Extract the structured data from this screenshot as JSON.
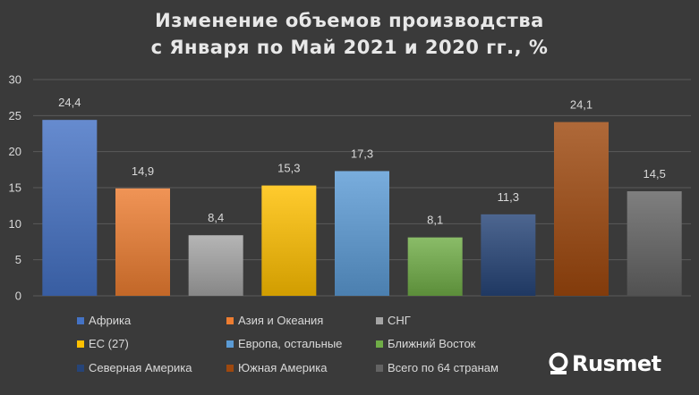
{
  "title_lines": [
    "Изменение объемов производства",
    "с Января по Май 2021 и 2020 гг., %"
  ],
  "logo_text": "Rusmet",
  "chart_data": {
    "type": "bar",
    "title": "Изменение объемов производства с Января по Май 2021 и 2020 гг., %",
    "categories": [
      "Африка",
      "Азия и Океания",
      "СНГ",
      "ЕС (27)",
      "Европа, остальные",
      "Ближний Восток",
      "Северная Америка",
      "Южная Америка",
      "Всего по 64 странам"
    ],
    "values": [
      24.4,
      14.9,
      8.4,
      15.3,
      17.3,
      8.1,
      11.3,
      24.1,
      14.5
    ],
    "value_labels": [
      "24,4",
      "14,9",
      "8,4",
      "15,3",
      "17,3",
      "8,1",
      "11,3",
      "24,1",
      "14,5"
    ],
    "colors": [
      "#4472c4",
      "#ed7d31",
      "#a5a5a5",
      "#ffc000",
      "#5b9bd5",
      "#70ad47",
      "#264478",
      "#9e480e",
      "#636363"
    ],
    "ylim": [
      0,
      30
    ],
    "yticks": [
      0,
      5,
      10,
      15,
      20,
      25,
      30
    ],
    "grid": true,
    "legend_position": "bottom",
    "xlabel": "",
    "ylabel": ""
  }
}
